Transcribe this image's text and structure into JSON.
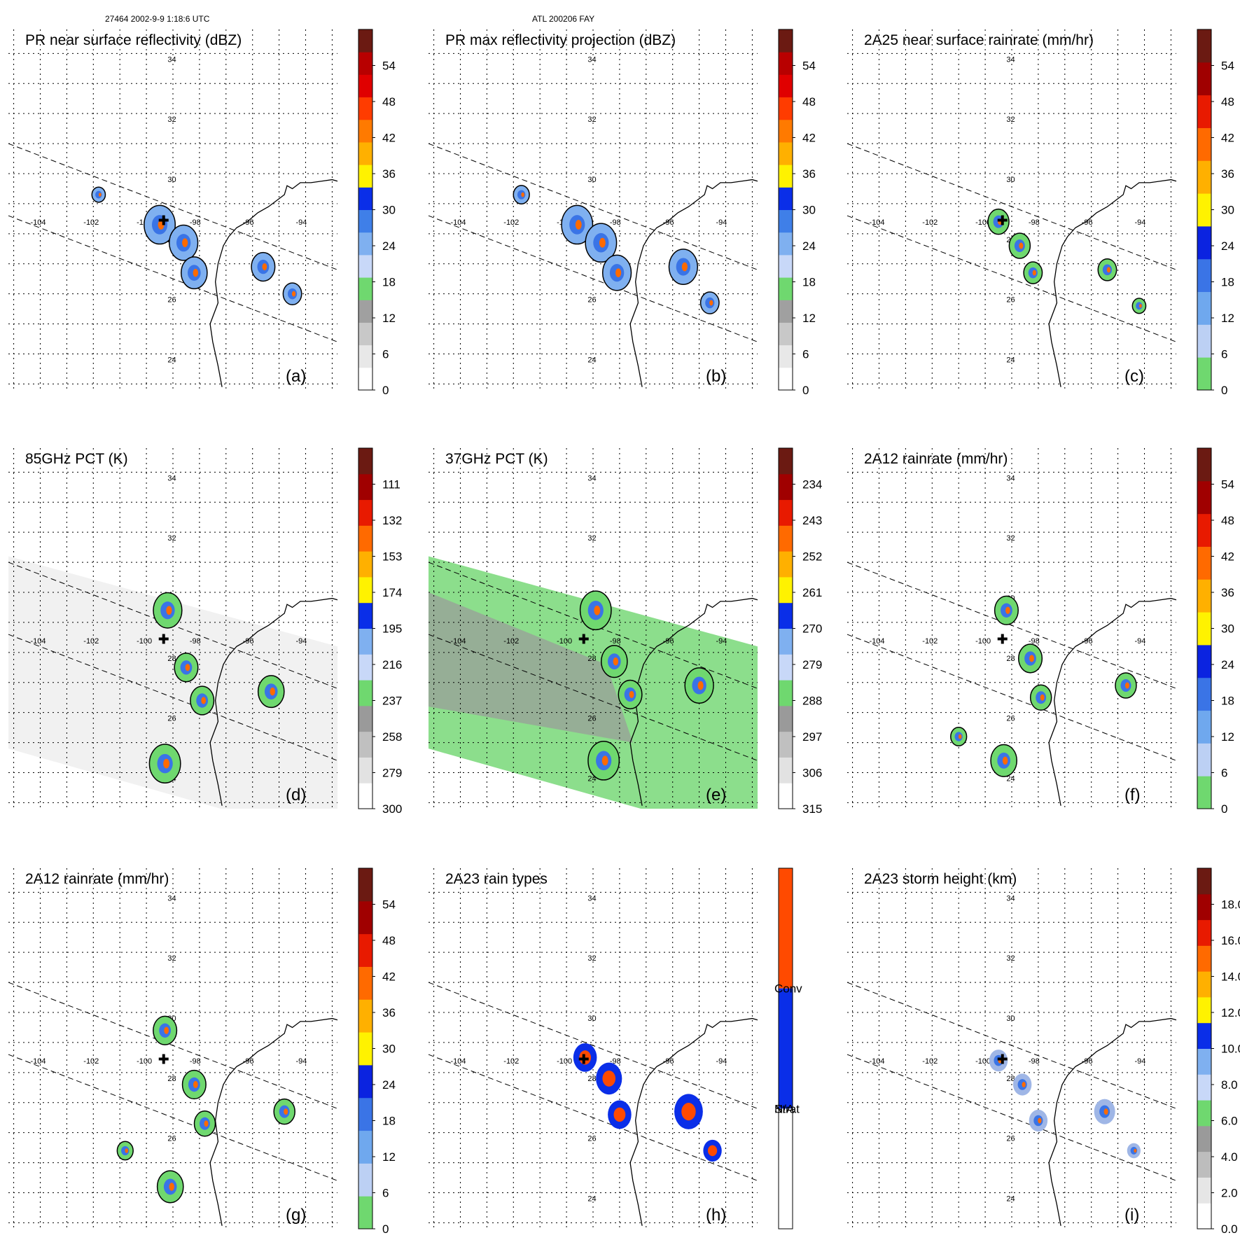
{
  "header": {
    "orbit": "27464 2002-9-9 1:18:6 UTC",
    "case": "ATL 200206 FAY"
  },
  "map": {
    "lon_ticks": [
      "-104",
      "-102",
      "-100",
      "-98",
      "-96",
      "-94"
    ],
    "lat_ticks": [
      "24",
      "26",
      "28",
      "30",
      "32",
      "34"
    ]
  },
  "panels": [
    {
      "id": "a",
      "title": "PR near surface reflectivity (dBZ)",
      "label": "(a)",
      "scale": "dbz",
      "ticks": [
        "0",
        "6",
        "12",
        "18",
        "24",
        "30",
        "36",
        "42",
        "48",
        "54"
      ],
      "cells": [
        [
          "-99.5",
          "28.3",
          "0.9"
        ],
        [
          "-98.6",
          "27.7",
          "0.8"
        ],
        [
          "-98.2",
          "26.7",
          "0.7"
        ],
        [
          "-95.6",
          "26.9",
          "0.6"
        ],
        [
          "-94.5",
          "26.0",
          "0.4"
        ],
        [
          "-101.8",
          "29.3",
          "0.2"
        ]
      ],
      "marker": true,
      "bg": "none"
    },
    {
      "id": "b",
      "title": "PR max reflectivity projection (dBZ)",
      "label": "(b)",
      "scale": "dbz",
      "ticks": [
        "0",
        "6",
        "12",
        "18",
        "24",
        "30",
        "36",
        "42",
        "48",
        "54"
      ],
      "cells": [
        [
          "-99.6",
          "28.3",
          "0.9"
        ],
        [
          "-98.7",
          "27.7",
          "0.9"
        ],
        [
          "-98.1",
          "26.7",
          "0.8"
        ],
        [
          "-95.6",
          "26.9",
          "0.8"
        ],
        [
          "-94.6",
          "25.7",
          "0.4"
        ],
        [
          "-101.7",
          "29.3",
          "0.3"
        ]
      ],
      "marker": false,
      "bg": "none"
    },
    {
      "id": "c",
      "title": "2A25 near surface rainrate (mm/hr)",
      "label": "(c)",
      "scale": "rain",
      "ticks": [
        "0",
        "6",
        "12",
        "18",
        "24",
        "30",
        "36",
        "42",
        "48",
        "54"
      ],
      "cells": [
        [
          "-99.5",
          "28.4",
          "0.5"
        ],
        [
          "-98.7",
          "27.6",
          "0.5"
        ],
        [
          "-98.2",
          "26.7",
          "0.4"
        ],
        [
          "-95.4",
          "26.8",
          "0.4"
        ],
        [
          "-94.2",
          "25.6",
          "0.2"
        ]
      ],
      "marker": true,
      "bg": "none"
    },
    {
      "id": "d",
      "title": "85GHz PCT (K)",
      "label": "(d)",
      "scale": "pct85",
      "ticks": [
        "300",
        "279",
        "258",
        "237",
        "216",
        "195",
        "174",
        "153",
        "132",
        "111"
      ],
      "cells": [
        [
          "-99.2",
          "29.4",
          "0.8"
        ],
        [
          "-98.5",
          "27.5",
          "0.6"
        ],
        [
          "-97.9",
          "26.4",
          "0.6"
        ],
        [
          "-95.3",
          "26.7",
          "0.7"
        ],
        [
          "-99.3",
          "24.3",
          "0.9"
        ]
      ],
      "marker": true,
      "bg": "gray"
    },
    {
      "id": "e",
      "title": "37GHz PCT (K)",
      "label": "(e)",
      "scale": "pct37",
      "ticks": [
        "315",
        "306",
        "297",
        "288",
        "279",
        "270",
        "261",
        "252",
        "243",
        "234"
      ],
      "cells": [
        [
          "-98.9",
          "29.4",
          "0.9"
        ],
        [
          "-98.2",
          "27.7",
          "0.7"
        ],
        [
          "-97.6",
          "26.6",
          "0.6"
        ],
        [
          "-95.0",
          "26.9",
          "0.8"
        ],
        [
          "-98.6",
          "24.4",
          "0.9"
        ]
      ],
      "marker": true,
      "bg": "green"
    },
    {
      "id": "f",
      "title": "2A12 rainrate (mm/hr)",
      "label": "(f)",
      "scale": "rain",
      "ticks": [
        "0",
        "6",
        "12",
        "18",
        "24",
        "30",
        "36",
        "42",
        "48",
        "54"
      ],
      "cells": [
        [
          "-99.2",
          "29.4",
          "0.6"
        ],
        [
          "-98.3",
          "27.8",
          "0.6"
        ],
        [
          "-97.9",
          "26.5",
          "0.5"
        ],
        [
          "-94.7",
          "26.9",
          "0.5"
        ],
        [
          "-99.3",
          "24.4",
          "0.7"
        ],
        [
          "-101.0",
          "25.2",
          "0.3"
        ]
      ],
      "marker": true,
      "bg": "none"
    },
    {
      "id": "g",
      "title": "2A12 rainrate (mm/hr)",
      "label": "(g)",
      "scale": "rain",
      "ticks": [
        "0",
        "6",
        "12",
        "18",
        "24",
        "30",
        "36",
        "42",
        "48",
        "54"
      ],
      "cells": [
        [
          "-99.3",
          "29.4",
          "0.6"
        ],
        [
          "-98.2",
          "27.6",
          "0.6"
        ],
        [
          "-97.8",
          "26.3",
          "0.5"
        ],
        [
          "-94.8",
          "26.7",
          "0.5"
        ],
        [
          "-99.1",
          "24.2",
          "0.7"
        ],
        [
          "-100.8",
          "25.4",
          "0.3"
        ]
      ],
      "marker": true,
      "bg": "none"
    },
    {
      "id": "h",
      "title": "2A23 rain types",
      "label": "(h)",
      "scale": "types",
      "ticks": [
        "N/A",
        "Strat",
        "Conv"
      ],
      "cells": [
        [
          "-99.3",
          "28.5",
          "0.6"
        ],
        [
          "-98.4",
          "27.8",
          "0.7"
        ],
        [
          "-98.0",
          "26.6",
          "0.6"
        ],
        [
          "-95.4",
          "26.7",
          "0.8"
        ],
        [
          "-94.5",
          "25.4",
          "0.4"
        ]
      ],
      "marker": true,
      "bg": "none"
    },
    {
      "id": "i",
      "title": "2A23 storm height (km)",
      "label": "(i)",
      "scale": "height",
      "ticks": [
        "0.0",
        "2.0",
        "4.0",
        "6.0",
        "8.0",
        "10.0",
        "12.0",
        "14.0",
        "16.0",
        "18.0"
      ],
      "cells": [
        [
          "-99.5",
          "28.4",
          "0.4"
        ],
        [
          "-98.6",
          "27.6",
          "0.4"
        ],
        [
          "-98.0",
          "26.4",
          "0.4"
        ],
        [
          "-95.5",
          "26.7",
          "0.5"
        ],
        [
          "-94.4",
          "25.4",
          "0.2"
        ]
      ],
      "marker": true,
      "bg": "none"
    }
  ],
  "colors": {
    "dbz": [
      "#ffffff",
      "#e8e8e8",
      "#c8c8c8",
      "#a0a0a0",
      "#6fd86f",
      "#c8d8f8",
      "#7fb0f0",
      "#3f7fe8",
      "#0a2ee8",
      "#fff200",
      "#ffb000",
      "#ff7a00",
      "#ff3c00",
      "#e00000",
      "#b80000",
      "#6b1a12"
    ],
    "rain": [
      "#6fd86f",
      "#bcd0f4",
      "#6fa8ee",
      "#3a74e6",
      "#0b23e0",
      "#fff200",
      "#ffb000",
      "#ff6a00",
      "#e81a00",
      "#a00000",
      "#6b1a12"
    ],
    "pct85": [
      "#ffffff",
      "#e2e2e2",
      "#c0c0c0",
      "#9a9a9a",
      "#6fd86f",
      "#c8d8f8",
      "#7fb0f0",
      "#0a2ee8",
      "#fff200",
      "#ffb000",
      "#ff6a00",
      "#e81a00",
      "#a00000",
      "#6b1a12"
    ],
    "types": [
      "#ffffff",
      "#0a2ee8",
      "#ff4a00"
    ],
    "height": [
      "#ffffff",
      "#e6e6e6",
      "#bdbdbd",
      "#9a9a9a",
      "#6fd86f",
      "#c8d8f8",
      "#7fb0f0",
      "#0a2ee8",
      "#fff200",
      "#ffb000",
      "#ff6a00",
      "#e81a00",
      "#a00000",
      "#6b1a12"
    ]
  }
}
